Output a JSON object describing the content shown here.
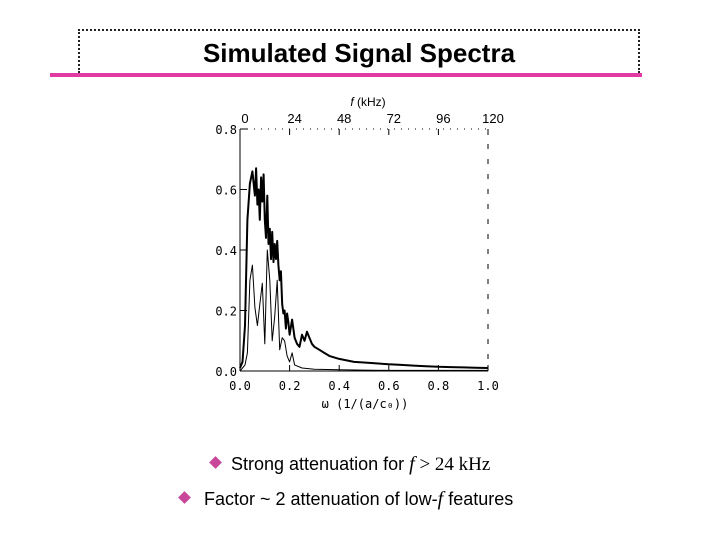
{
  "slide": {
    "title": "Simulated Signal Spectra"
  },
  "bullets": {
    "b1_prefix": "Strong attenuation for ",
    "b1_var": "f",
    "b1_rest": " > 24 kHz",
    "b2_prefix": "Factor ~ 2 attenuation of low-",
    "b2_var": "f",
    "b2_rest": " features"
  },
  "colors": {
    "title_underline": "#e23aa3",
    "bullet_marker": "#c8479a"
  },
  "chart_data": {
    "type": "line",
    "x_bottom_label": "ω (1/(a/c₀))",
    "x_bottom_ticks": [
      "0.0",
      "0.2",
      "0.4",
      "0.6",
      "0.8",
      "1.0"
    ],
    "x_bottom_range": [
      0.0,
      1.0
    ],
    "x_top_label_var": "f",
    "x_top_label_unit": " (kHz)",
    "x_top_ticks": [
      "0",
      "24",
      "48",
      "72",
      "96",
      "120"
    ],
    "y_ticks": [
      "0.0",
      "0.2",
      "0.4",
      "0.6",
      "0.8"
    ],
    "y_range": [
      0.0,
      0.8
    ],
    "grid": false,
    "series": [
      {
        "style": "thick",
        "x": [
          0.0,
          0.01,
          0.02,
          0.03,
          0.04,
          0.05,
          0.06,
          0.065,
          0.07,
          0.075,
          0.08,
          0.085,
          0.09,
          0.095,
          0.1,
          0.105,
          0.11,
          0.115,
          0.12,
          0.125,
          0.13,
          0.135,
          0.14,
          0.145,
          0.15,
          0.155,
          0.16,
          0.165,
          0.17,
          0.175,
          0.18,
          0.185,
          0.19,
          0.195,
          0.2,
          0.21,
          0.22,
          0.23,
          0.24,
          0.25,
          0.26,
          0.27,
          0.28,
          0.29,
          0.3,
          0.32,
          0.34,
          0.36,
          0.38,
          0.4,
          0.43,
          0.46,
          0.5,
          0.55,
          0.6,
          0.65,
          0.7,
          0.75,
          0.8,
          0.85,
          0.9,
          0.95,
          1.0
        ],
        "y": [
          0.01,
          0.03,
          0.15,
          0.5,
          0.62,
          0.66,
          0.58,
          0.67,
          0.55,
          0.6,
          0.5,
          0.64,
          0.56,
          0.65,
          0.5,
          0.44,
          0.58,
          0.42,
          0.47,
          0.37,
          0.46,
          0.36,
          0.42,
          0.37,
          0.43,
          0.35,
          0.3,
          0.33,
          0.22,
          0.19,
          0.2,
          0.14,
          0.19,
          0.16,
          0.12,
          0.17,
          0.11,
          0.09,
          0.08,
          0.12,
          0.1,
          0.13,
          0.11,
          0.09,
          0.08,
          0.07,
          0.06,
          0.05,
          0.045,
          0.04,
          0.035,
          0.03,
          0.028,
          0.025,
          0.022,
          0.02,
          0.018,
          0.016,
          0.014,
          0.013,
          0.012,
          0.011,
          0.01
        ]
      },
      {
        "style": "thin",
        "x": [
          0.0,
          0.01,
          0.02,
          0.03,
          0.04,
          0.05,
          0.06,
          0.07,
          0.08,
          0.09,
          0.1,
          0.11,
          0.12,
          0.13,
          0.14,
          0.15,
          0.16,
          0.17,
          0.18,
          0.19,
          0.2,
          0.21,
          0.22,
          0.25,
          0.3,
          0.4,
          0.5,
          0.6,
          0.8,
          1.0
        ],
        "y": [
          0.0,
          0.01,
          0.02,
          0.06,
          0.3,
          0.35,
          0.21,
          0.15,
          0.22,
          0.29,
          0.09,
          0.4,
          0.3,
          0.1,
          0.18,
          0.3,
          0.07,
          0.11,
          0.1,
          0.05,
          0.03,
          0.06,
          0.02,
          0.01,
          0.006,
          0.004,
          0.003,
          0.002,
          0.002,
          0.002
        ]
      }
    ]
  }
}
